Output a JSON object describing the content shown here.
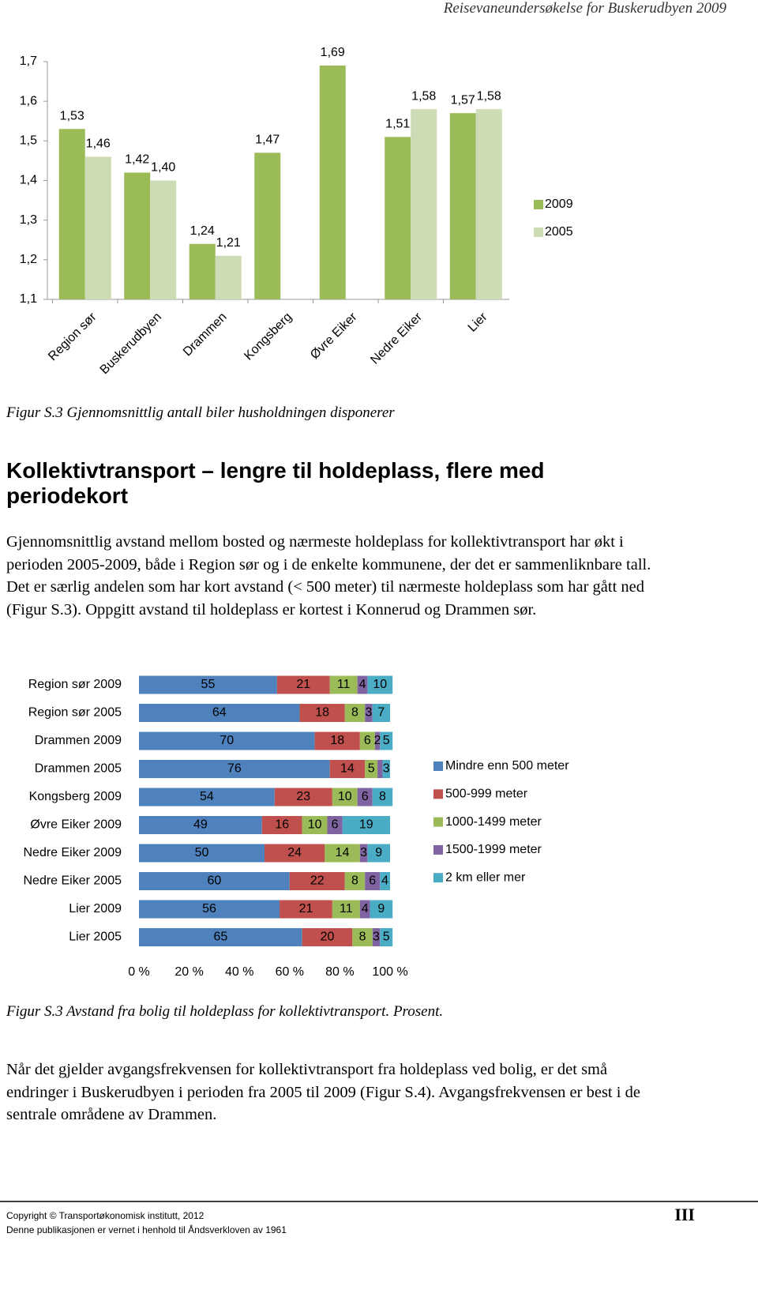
{
  "header": {
    "title": "Reisevaneundersøkelse for Buskerudbyen 2009"
  },
  "chart_data": [
    {
      "type": "bar",
      "categories": [
        "Region sør",
        "Buskerudbyen",
        "Drammen",
        "Kongsberg",
        "Øvre Eiker",
        "Nedre Eiker",
        "Lier"
      ],
      "series": [
        {
          "name": "2009",
          "color": "#9bbb59",
          "values": [
            1.53,
            1.42,
            1.24,
            1.47,
            1.69,
            1.51,
            1.57
          ],
          "value_labels": [
            "1,53",
            "1,42",
            "1,24",
            "1,47",
            "1,69",
            "1,51",
            "1,57"
          ]
        },
        {
          "name": "2005",
          "color": "#cddcb4",
          "values": [
            1.46,
            1.4,
            1.21,
            null,
            null,
            1.58,
            1.58
          ],
          "value_labels": [
            "1,46",
            "1,40",
            "1,21",
            null,
            null,
            "1,58",
            "1,58"
          ]
        }
      ],
      "ylim": [
        1.1,
        1.7
      ],
      "yticks": [
        {
          "value": 1.1,
          "label": "1,1"
        },
        {
          "value": 1.2,
          "label": "1,2"
        },
        {
          "value": 1.3,
          "label": "1,3"
        },
        {
          "value": 1.4,
          "label": "1,4"
        },
        {
          "value": 1.5,
          "label": "1,5"
        },
        {
          "value": 1.6,
          "label": "1,6"
        },
        {
          "value": 1.7,
          "label": "1,7"
        }
      ],
      "legend": "right"
    },
    {
      "type": "bar",
      "orientation": "horizontal",
      "stacked": true,
      "categories": [
        "Region sør 2009",
        "Region sør 2005",
        "Drammen 2009",
        "Drammen 2005",
        "Kongsberg 2009",
        "Øvre Eiker 2009",
        "Nedre Eiker 2009",
        "Nedre Eiker 2005",
        "Lier 2009",
        "Lier 2005"
      ],
      "series": [
        {
          "name": "Mindre enn 500 meter",
          "color": "#4f81bd",
          "values": [
            55,
            64,
            70,
            76,
            54,
            49,
            50,
            60,
            56,
            65
          ]
        },
        {
          "name": "500-999 meter",
          "color": "#c0504d",
          "values": [
            21,
            18,
            18,
            14,
            23,
            16,
            24,
            22,
            21,
            20
          ]
        },
        {
          "name": "1000-1499 meter",
          "color": "#9bbb59",
          "values": [
            11,
            8,
            6,
            5,
            10,
            10,
            14,
            8,
            11,
            8
          ]
        },
        {
          "name": "1500-1999 meter",
          "color": "#8064a2",
          "values": [
            4,
            3,
            2,
            2,
            6,
            6,
            3,
            6,
            4,
            3
          ],
          "value_labels": [
            "4",
            "3",
            "2",
            null,
            "6",
            "6",
            "3",
            "6",
            "4",
            "3"
          ]
        },
        {
          "name": "2 km eller mer",
          "color": "#4bacc6",
          "values": [
            10,
            7,
            5,
            3,
            8,
            19,
            9,
            4,
            9,
            5
          ]
        }
      ],
      "xlim": [
        0,
        100
      ],
      "xticks": [
        {
          "value": 0,
          "label": "0 %"
        },
        {
          "value": 20,
          "label": "20 %"
        },
        {
          "value": 40,
          "label": "40 %"
        },
        {
          "value": 60,
          "label": "60 %"
        },
        {
          "value": 80,
          "label": "80 %"
        },
        {
          "value": 100,
          "label": "100 %"
        }
      ],
      "legend": "right"
    }
  ],
  "captions": [
    "Figur S.3 Gjennomsnittlig antall biler husholdningen disponerer",
    "Figur S.3 Avstand fra bolig til holdeplass for kollektivtransport. Prosent."
  ],
  "heading": "Kollektivtransport – lengre til holdeplass, flere med periodekort",
  "paragraphs": [
    "Gjennomsnittlig avstand mellom bosted og nærmeste holdeplass for kollektivtransport har økt i perioden 2005-2009, både i Region sør og i de enkelte kommunene, der det er sammenliknbare tall. Det er særlig andelen som har kort avstand (< 500 meter) til nærmeste holdeplass som har gått ned (Figur S.3). Oppgitt avstand til holdeplass er kortest i Konnerud og Drammen sør.",
    "Når det gjelder avgangsfrekvensen for kollektivtransport fra holdeplass ved bolig, er det små endringer i Buskerudbyen i perioden fra 2005 til 2009 (Figur S.4). Avgangsfrekvensen er best i de sentrale områdene av Drammen."
  ],
  "footer": {
    "copyright": "Copyright © Transportøkonomisk institutt, 2012",
    "notice": "Denne publikasjonen er vernet i henhold til Åndsverkloven av 1961",
    "page": "III"
  }
}
